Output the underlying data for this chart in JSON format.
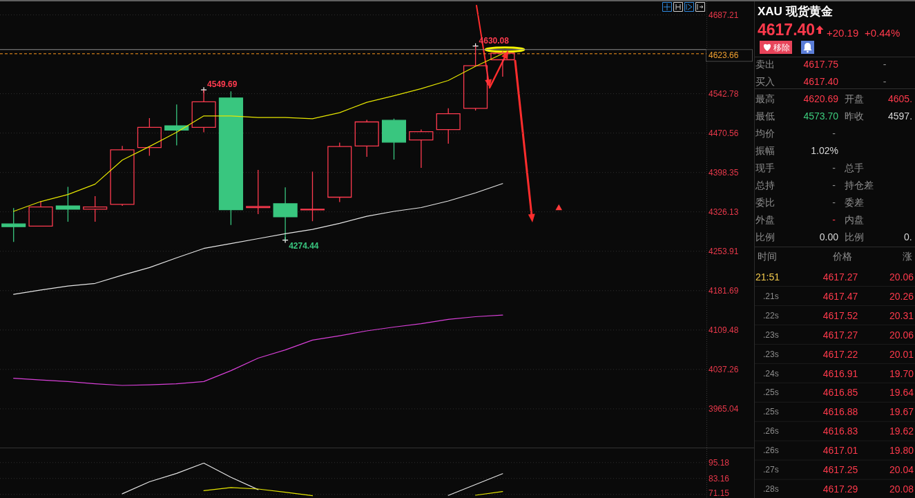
{
  "chart_data": [
    {
      "type": "candlestick",
      "categories": [
        null,
        null,
        null,
        null,
        null,
        null,
        null,
        null,
        null,
        null,
        null,
        null,
        null,
        null,
        null,
        null,
        null,
        null,
        null,
        null,
        null,
        null,
        null,
        null,
        null,
        null
      ],
      "ohlc": [
        [
          4304,
          4333,
          4271,
          4299
        ],
        [
          4300,
          4346,
          4300,
          4335
        ],
        [
          4337,
          4372,
          4308,
          4331
        ],
        [
          4331,
          4355,
          4308,
          4335
        ],
        [
          4340,
          4447,
          4337,
          4440
        ],
        [
          4444,
          4498,
          4429,
          4481
        ],
        [
          4484,
          4523,
          4448,
          4476
        ],
        [
          4481,
          4549.69,
          4472,
          4528
        ],
        [
          4535,
          4547,
          4302,
          4330
        ],
        [
          4334,
          4403,
          4322,
          4336
        ],
        [
          4341,
          4371,
          4274.44,
          4317
        ],
        [
          4330,
          4400,
          4309,
          4331
        ],
        [
          4353,
          4453,
          4344,
          4446
        ],
        [
          4447,
          4495,
          4427,
          4491
        ],
        [
          4494,
          4497,
          4422,
          4454
        ],
        [
          4458,
          4477,
          4407,
          4473
        ],
        [
          4477,
          4516,
          4451,
          4506
        ],
        [
          4516,
          4630.08,
          4512,
          4594
        ],
        [
          4605,
          4621,
          4574,
          4617
        ],
        null,
        null,
        null,
        null,
        null,
        null,
        null
      ],
      "colors": [
        "#39c67f",
        "#ff3b4f",
        "#39c67f",
        "#ff3b4f",
        "#ff3b4f",
        "#ff3b4f",
        "#39c67f",
        "#ff3b4f",
        "#39c67f",
        "#ff3b4f",
        "#39c67f",
        "#ff3b4f",
        "#ff3b4f",
        "#ff3b4f",
        "#39c67f",
        "#ff3b4f",
        "#ff3b4f",
        "#ff3b4f",
        "#ff3b4f",
        null,
        null,
        null,
        null,
        null,
        null,
        null
      ],
      "series": [
        {
          "type": "line",
          "color": "#e6e600",
          "values": [
            4327,
            4345,
            4358,
            4377,
            4421,
            4446,
            4472,
            4502,
            4502,
            4499,
            4499,
            4497,
            4508,
            4527,
            4539,
            4552,
            4567,
            4593,
            4616,
            null,
            null,
            null,
            null,
            null,
            null,
            null
          ]
        },
        {
          "type": "line",
          "color": "#e6e6e6",
          "values": [
            4175,
            4183,
            4190,
            4195,
            4210,
            4224,
            4242,
            4259,
            4268,
            4277,
            4286,
            4294,
            4305,
            4318,
            4327,
            4334,
            4346,
            4361,
            4378,
            null,
            null,
            null,
            null,
            null,
            null,
            null
          ]
        },
        {
          "type": "line",
          "color": "#d940d9",
          "values": [
            4021,
            4018,
            4015,
            4011,
            4008,
            4009,
            4011,
            4015,
            4035,
            4058,
            4073,
            4091,
            4099,
            4108,
            4115,
            4121,
            4129,
            4134,
            4137,
            null,
            null,
            null,
            null,
            null,
            null,
            null
          ]
        }
      ],
      "ylim": [
        3894,
        4712
      ],
      "yticks": [
        4687.21,
        4542.78,
        4470.56,
        4398.35,
        4326.13,
        4253.91,
        4181.69,
        4109.48,
        4037.26,
        3965.04
      ],
      "grid": "y",
      "tick_labels": "y",
      "annotations": [
        "4549.69",
        "4274.44",
        "4630.08"
      ],
      "ref_lines": [
        {
          "axis": "y",
          "value": 4623.66,
          "label": "4623.66",
          "color": "#8c8c8c"
        },
        {
          "axis": "y",
          "value": 4616,
          "color": "#ff9a1f",
          "line_style": "dashed"
        }
      ]
    },
    {
      "type": "line",
      "categories": [
        null,
        null,
        null,
        null,
        null,
        null,
        null,
        null,
        null,
        null,
        null,
        null,
        null,
        null,
        null,
        null,
        null,
        null,
        null,
        null,
        null,
        null,
        null,
        null,
        null,
        null
      ],
      "series": [
        {
          "color": "#e6e6e6",
          "values": [
            null,
            null,
            null,
            null,
            71.6,
            80.7,
            87.0,
            94.8,
            84.1,
            74.7,
            null,
            null,
            null,
            null,
            null,
            null,
            70.4,
            78.6,
            86.8,
            null,
            null,
            null,
            null,
            null,
            null,
            null
          ]
        },
        {
          "color": "#e6e600",
          "values": [
            null,
            null,
            null,
            null,
            null,
            null,
            null,
            74.0,
            76.3,
            75.2,
            72.8,
            70.2,
            null,
            null,
            null,
            null,
            null,
            70.5,
            73.3,
            null,
            null,
            null,
            null,
            null,
            null,
            null
          ]
        }
      ],
      "ylim": [
        68.4,
        105.5
      ],
      "yticks": [
        95.18,
        83.16,
        71.15
      ],
      "grid": "y",
      "tick_labels": "y"
    },
    {
      "type": "other",
      "title": "XAU 现货黄金",
      "annotations": [
        "4617.40",
        "+20.19",
        "+0.44%",
        "移除",
        "卖出",
        "4617.75",
        "-",
        "买入",
        "4617.40",
        "-",
        "最高",
        "4620.69",
        "开盘",
        "4605.",
        "最低",
        "4573.70",
        "昨收",
        "4597.",
        "均价",
        "-",
        "振幅",
        "1.02%",
        "现手",
        "-",
        "总手",
        "总持",
        "-",
        "持仓差",
        "委比",
        "-",
        "委差",
        "外盘",
        "-",
        "内盘",
        "比例",
        "0.00",
        "比例",
        "0.",
        "时间",
        "价格",
        "涨",
        "21:51",
        "4617.27",
        "20.06",
        ".21s",
        "4617.47",
        "20.26",
        ".22s",
        "4617.52",
        "20.31",
        ".23s",
        "4617.27",
        "20.06",
        ".23s",
        "4617.22",
        "20.01",
        ".24s",
        "4616.91",
        "19.70",
        ".25s",
        "4616.85",
        "19.64",
        ".25s",
        "4616.88",
        "19.67",
        ".26s",
        "4616.83",
        "19.62",
        ".26s",
        "4617.01",
        "19.80",
        ".27s",
        "4617.25",
        "20.04",
        ".28s",
        "4617.29",
        "20.08"
      ]
    }
  ]
}
